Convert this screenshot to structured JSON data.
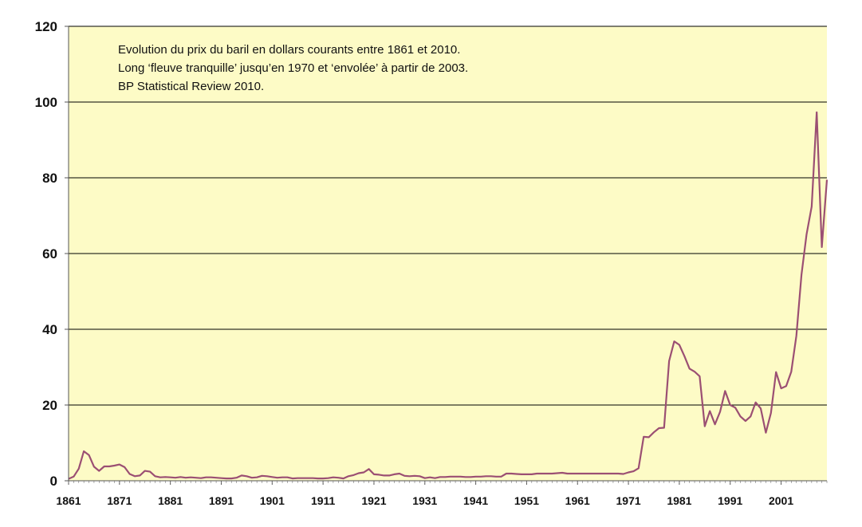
{
  "chart_data": {
    "type": "line",
    "annotation_lines": [
      "Evolution du prix du baril en dollars courants entre 1861 et 2010.",
      "Long ‘fleuve tranquille’ jusqu’en 1970 et ‘envolée’ à partir de 2003.",
      "BP Statistical Review 2010."
    ],
    "xlim": [
      1861,
      2010
    ],
    "ylim": [
      0,
      120
    ],
    "x_ticks": [
      1861,
      1871,
      1881,
      1891,
      1901,
      1911,
      1921,
      1931,
      1941,
      1951,
      1961,
      1971,
      1981,
      1991,
      2001
    ],
    "x_tick_labels": [
      "1861",
      "1871",
      "1881",
      "1891",
      "1901",
      "1911",
      "1921",
      "1931",
      "1941",
      "1951",
      "1961",
      "1971",
      "1981",
      "1991",
      "2001"
    ],
    "y_ticks": [
      0,
      20,
      40,
      60,
      80,
      100,
      120
    ],
    "y_tick_labels": [
      "0",
      "20",
      "40",
      "60",
      "80",
      "100",
      "120"
    ],
    "grid": "horizontal",
    "colors": {
      "plot_background": "#fdfbc6",
      "line": "#9b4f73",
      "grid": "#000000"
    },
    "series": [
      {
        "x": [
          1861,
          1862,
          1863,
          1864,
          1865,
          1866,
          1867,
          1868,
          1869,
          1870,
          1871,
          1872,
          1873,
          1874,
          1875,
          1876,
          1877,
          1878,
          1879,
          1880,
          1881,
          1882,
          1883,
          1884,
          1885,
          1886,
          1887,
          1888,
          1889,
          1890,
          1891,
          1892,
          1893,
          1894,
          1895,
          1896,
          1897,
          1898,
          1899,
          1900,
          1901,
          1902,
          1903,
          1904,
          1905,
          1906,
          1907,
          1908,
          1909,
          1910,
          1911,
          1912,
          1913,
          1914,
          1915,
          1916,
          1917,
          1918,
          1919,
          1920,
          1921,
          1922,
          1923,
          1924,
          1925,
          1926,
          1927,
          1928,
          1929,
          1930,
          1931,
          1932,
          1933,
          1934,
          1935,
          1936,
          1937,
          1938,
          1939,
          1940,
          1941,
          1942,
          1943,
          1944,
          1945,
          1946,
          1947,
          1948,
          1949,
          1950,
          1951,
          1952,
          1953,
          1954,
          1955,
          1956,
          1957,
          1958,
          1959,
          1960,
          1961,
          1962,
          1963,
          1964,
          1965,
          1966,
          1967,
          1968,
          1969,
          1970,
          1971,
          1972,
          1973,
          1974,
          1975,
          1976,
          1977,
          1978,
          1979,
          1980,
          1981,
          1982,
          1983,
          1984,
          1985,
          1986,
          1987,
          1988,
          1989,
          1990,
          1991,
          1992,
          1993,
          1994,
          1995,
          1996,
          1997,
          1998,
          1999,
          2000,
          2001,
          2002,
          2003,
          2004,
          2005,
          2006,
          2007,
          2008,
          2009,
          2010
        ],
        "values": [
          0.5,
          1.1,
          3.2,
          7.8,
          6.8,
          3.7,
          2.6,
          3.8,
          3.8,
          4.0,
          4.3,
          3.6,
          1.8,
          1.2,
          1.4,
          2.6,
          2.4,
          1.2,
          0.9,
          1.0,
          0.9,
          0.8,
          1.0,
          0.8,
          0.9,
          0.8,
          0.7,
          0.9,
          0.9,
          0.8,
          0.7,
          0.6,
          0.6,
          0.8,
          1.4,
          1.2,
          0.8,
          0.9,
          1.3,
          1.2,
          1.0,
          0.8,
          0.9,
          0.9,
          0.6,
          0.7,
          0.7,
          0.7,
          0.7,
          0.6,
          0.6,
          0.7,
          0.9,
          0.8,
          0.6,
          1.2,
          1.5,
          2.0,
          2.2,
          3.1,
          1.7,
          1.6,
          1.4,
          1.4,
          1.7,
          1.9,
          1.3,
          1.2,
          1.3,
          1.2,
          0.7,
          0.9,
          0.7,
          1.0,
          1.0,
          1.1,
          1.1,
          1.1,
          1.0,
          1.0,
          1.1,
          1.1,
          1.2,
          1.2,
          1.1,
          1.1,
          1.9,
          1.9,
          1.8,
          1.7,
          1.7,
          1.7,
          1.9,
          1.9,
          1.9,
          1.9,
          2.0,
          2.1,
          1.9,
          1.9,
          1.9,
          1.9,
          1.9,
          1.9,
          1.9,
          1.9,
          1.9,
          1.9,
          1.9,
          1.8,
          2.2,
          2.5,
          3.3,
          11.6,
          11.5,
          12.8,
          13.9,
          14.0,
          31.6,
          36.8,
          35.9,
          32.9,
          29.6,
          28.8,
          27.6,
          14.4,
          18.4,
          14.9,
          18.2,
          23.7,
          20.0,
          19.3,
          17.0,
          15.8,
          17.0,
          20.7,
          19.1,
          12.7,
          17.9,
          28.7,
          24.4,
          25.0,
          28.8,
          38.3,
          54.4,
          65.1,
          72.4,
          97.3,
          61.7,
          79.5
        ]
      }
    ]
  }
}
